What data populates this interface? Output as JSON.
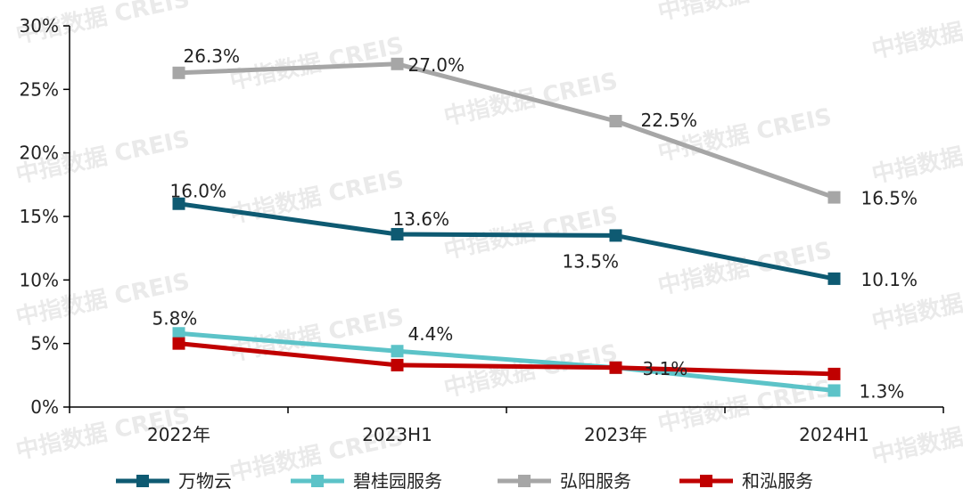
{
  "chart_data": {
    "type": "line",
    "categories": [
      "2022年",
      "2023H1",
      "2023年",
      "2024H1"
    ],
    "ylim": [
      0,
      30
    ],
    "yticks": [
      0,
      5,
      10,
      15,
      20,
      25,
      30
    ],
    "ytick_labels": [
      "0%",
      "5%",
      "10%",
      "15%",
      "20%",
      "25%",
      "30%"
    ],
    "grid": false,
    "legend_position": "bottom",
    "series": [
      {
        "name": "万物云",
        "values": [
          16.0,
          13.6,
          13.5,
          10.1
        ],
        "labels": [
          "16.0%",
          "13.6%",
          "13.5%",
          "10.1%"
        ],
        "color": "#0e5a72"
      },
      {
        "name": "碧桂园服务",
        "values": [
          5.8,
          4.4,
          3.1,
          1.3
        ],
        "labels": [
          "5.8%",
          "4.4%",
          "3.1%",
          "1.3%"
        ],
        "color": "#5cc3c8"
      },
      {
        "name": "弘阳服务",
        "values": [
          26.3,
          27.0,
          22.5,
          16.5
        ],
        "labels": [
          "26.3%",
          "27.0%",
          "22.5%",
          "16.5%"
        ],
        "color": "#a6a6a6"
      },
      {
        "name": "和泓服务",
        "values": [
          5.0,
          3.3,
          3.1,
          2.6
        ],
        "labels": [],
        "color": "#c00000"
      }
    ]
  },
  "watermark": "中指数据 CREIS"
}
